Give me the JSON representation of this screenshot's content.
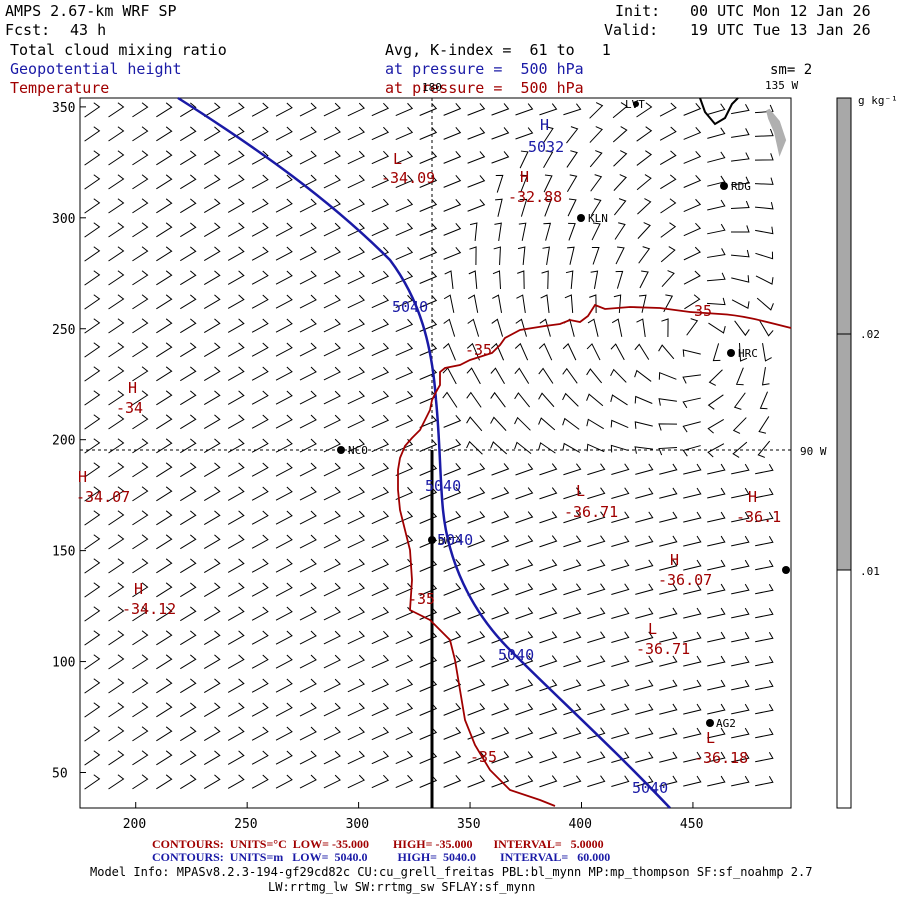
{
  "header": {
    "model": "AMPS 2.67-km WRF SP",
    "fcst_label": "Fcst:",
    "fcst_value": "43 h",
    "init_label": "Init:",
    "init_value": "00 UTC Mon 12 Jan 26",
    "valid_label": "Valid:",
    "valid_value": "19 UTC Tue 13 Jan 26",
    "field1": "Total cloud mixing ratio",
    "field1_info": "Avg, K-index =  61 to   1",
    "field2": "Geopotential height",
    "field2_info": "at pressure =  500 hPa",
    "field3": "Temperature",
    "field3_info": "at pressure =  500 hPa",
    "sm": "sm= 2"
  },
  "colors": {
    "height_contour": "#1a1aa6",
    "temperature_contour": "#a00000",
    "colorbar_fill": "#a8a8a8"
  },
  "map": {
    "x_ticks": [
      "200",
      "250",
      "300",
      "350",
      "400",
      "450"
    ],
    "y_ticks": [
      "50",
      "100",
      "150",
      "200",
      "250",
      "300",
      "350"
    ],
    "meridian_label_top": "180",
    "meridian_label_135": "135 W",
    "meridian_label_90": "90 W",
    "stations": [
      "LVT",
      "RDG",
      "KLN",
      "HRC",
      "NCO",
      "BWT",
      "AG2"
    ],
    "height_labels": [
      "5040",
      "5040",
      "5040",
      "5040",
      "5040",
      "5032"
    ],
    "height_high": "H",
    "temp_labels": [
      {
        "sym": "L",
        "val": "-34.09"
      },
      {
        "sym": "H",
        "val": "-32.88"
      },
      {
        "sym": "H",
        "val": "-34"
      },
      {
        "sym": "H",
        "val": "-34.07"
      },
      {
        "sym": "H",
        "val": "-34.12"
      },
      {
        "sym": "L",
        "val": "-36.71"
      },
      {
        "sym": "H",
        "val": "-36.07"
      },
      {
        "sym": "L",
        "val": "-36.71"
      },
      {
        "sym": "L",
        "val": "-36.18"
      },
      {
        "sym": "H",
        "val": "-36.1"
      }
    ],
    "temp_contour_labels": [
      "-35",
      "-35",
      "-35",
      "-35"
    ]
  },
  "colorbar": {
    "unit": "g kg⁻¹",
    "ticks": [
      ".02",
      ".01"
    ]
  },
  "footer": {
    "line1": "CONTOURS:  UNITS=°C  LOW= -35.000        HIGH= -35.000       INTERVAL=   5.0000",
    "line2": "CONTOURS:  UNITS=m   LOW=  5040.0          HIGH=  5040.0        INTERVAL=   60.000",
    "model_info": "Model Info: MPASv8.2.3-194-gf29cd82c CU:cu_grell_freitas PBL:bl_mynn MP:mp_thompson SF:sf_noahmp 2.7",
    "model_info2": "LW:rrtmg_lw SW:rrtmg_sw SFLAY:sf_mynn"
  }
}
